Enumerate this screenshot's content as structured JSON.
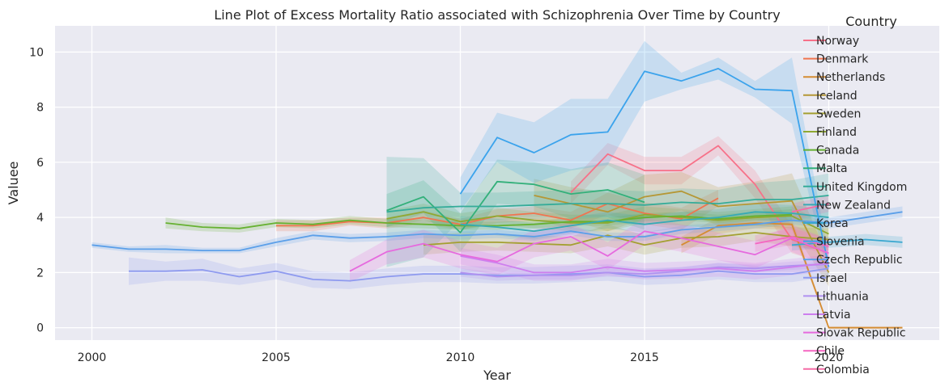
{
  "chart_data": {
    "type": "line",
    "title": "Line Plot of Excess Mortality Ratio associated with Schizophrenia Over Time by Country",
    "xlabel": "Year",
    "ylabel": "Valuee",
    "xlim": [
      1999,
      2023
    ],
    "ylim": [
      -0.45,
      10.95
    ],
    "xticks": [
      2000,
      2005,
      2010,
      2015,
      2020
    ],
    "yticks": [
      0,
      2,
      4,
      6,
      8,
      10
    ],
    "grid": true,
    "legend": {
      "title": "Country",
      "placement": "top-right"
    },
    "series": [
      {
        "name": "Norway",
        "color": "#f77189",
        "x": [
          2013,
          2014,
          2015,
          2016,
          2017,
          2018,
          2019,
          2020
        ],
        "y": [
          4.9,
          6.3,
          5.7,
          5.7,
          6.6,
          5.2,
          3.2,
          2.7
        ],
        "band": [
          0.4,
          0.4,
          0.5,
          0.5,
          0.35,
          0.5,
          0.5,
          0.4
        ]
      },
      {
        "name": "Denmark",
        "color": "#f0744f",
        "x": [
          2005,
          2006,
          2007,
          2008,
          2009,
          2010,
          2011,
          2012,
          2013,
          2014,
          2015,
          2016,
          2017
        ],
        "y": [
          3.7,
          3.7,
          3.85,
          3.8,
          4.0,
          3.75,
          4.05,
          4.15,
          3.9,
          4.5,
          4.15,
          3.95,
          4.7
        ],
        "band": [
          0.2,
          0.2,
          0.15,
          0.2,
          0.25,
          0.2,
          0.25,
          0.25,
          0.3,
          0.4,
          0.4,
          0.4,
          0.3
        ]
      },
      {
        "name": "Netherlands",
        "color": "#d58c32",
        "x": [
          2016,
          2017,
          2018,
          2019,
          2020,
          2021,
          2022
        ],
        "y": [
          3.0,
          3.7,
          3.8,
          3.75,
          0.0,
          0.0,
          0.0
        ],
        "band": [
          0.3,
          0.3,
          0.2,
          0.2,
          0.05,
          0.05,
          0.05
        ]
      },
      {
        "name": "Iceland",
        "color": "#b59735",
        "x": [
          2012,
          2013,
          2014,
          2015,
          2016,
          2017,
          2018,
          2019,
          2020
        ],
        "y": [
          4.8,
          4.5,
          4.2,
          4.75,
          4.95,
          4.4,
          4.5,
          4.6,
          2.0
        ],
        "band": [
          0.6,
          0.6,
          0.7,
          0.8,
          0.7,
          0.7,
          0.8,
          1.0,
          0.5
        ]
      },
      {
        "name": "Sweden",
        "color": "#a4a031",
        "x": [
          2009,
          2010,
          2011,
          2012,
          2013,
          2014,
          2015,
          2016,
          2017,
          2018,
          2019,
          2020
        ],
        "y": [
          3.0,
          3.1,
          3.1,
          3.05,
          3.0,
          3.35,
          3.0,
          3.25,
          3.3,
          3.45,
          3.3,
          3.2
        ],
        "band": [
          0.35,
          0.35,
          0.3,
          0.3,
          0.3,
          0.4,
          0.35,
          0.35,
          0.35,
          0.3,
          0.35,
          0.4
        ]
      },
      {
        "name": "Finland",
        "color": "#8fa931",
        "x": [
          2008,
          2009,
          2010,
          2011,
          2012,
          2013,
          2014,
          2015,
          2016,
          2017,
          2018,
          2019,
          2020
        ],
        "y": [
          3.95,
          4.2,
          3.85,
          4.05,
          3.9,
          3.8,
          3.8,
          4.1,
          4.0,
          3.9,
          4.0,
          4.05,
          3.4
        ],
        "band": [
          0.3,
          0.3,
          0.3,
          0.3,
          0.3,
          0.3,
          0.3,
          0.3,
          0.3,
          0.3,
          0.3,
          0.35,
          0.3
        ]
      },
      {
        "name": "Canada",
        "color": "#66b131",
        "x": [
          2002,
          2003,
          2004,
          2005,
          2006,
          2007,
          2008,
          2009,
          2010,
          2011,
          2012,
          2013,
          2014,
          2015,
          2016,
          2017,
          2018,
          2019
        ],
        "y": [
          3.8,
          3.65,
          3.6,
          3.8,
          3.75,
          3.9,
          3.8,
          3.75,
          3.7,
          3.7,
          3.75,
          3.85,
          3.85,
          4.0,
          4.05,
          3.95,
          4.05,
          4.1
        ],
        "band": [
          0.2,
          0.15,
          0.15,
          0.15,
          0.15,
          0.15,
          0.15,
          0.15,
          0.15,
          0.15,
          0.15,
          0.15,
          0.15,
          0.15,
          0.15,
          0.15,
          0.15,
          0.2
        ]
      },
      {
        "name": "Malta",
        "color": "#33b07a",
        "x": [
          2008,
          2009,
          2010,
          2011,
          2012,
          2013,
          2014,
          2015
        ],
        "y": [
          4.25,
          4.75,
          3.45,
          5.3,
          5.2,
          4.85,
          5.0,
          4.55
        ],
        "band": [
          0.6,
          0.6,
          0.7,
          0.8,
          0.8,
          0.9,
          1.0,
          1.0
        ]
      },
      {
        "name": "United Kingdom",
        "color": "#35ac99",
        "x": [
          2008,
          2009,
          2010,
          2011,
          2012,
          2013,
          2014,
          2015,
          2016,
          2017,
          2018,
          2019,
          2020
        ],
        "y": [
          4.2,
          4.35,
          4.4,
          4.4,
          4.45,
          4.5,
          4.5,
          4.45,
          4.55,
          4.5,
          4.65,
          4.65,
          4.8
        ],
        "band": [
          2.0,
          1.8,
          0.5,
          0.5,
          0.5,
          0.5,
          0.5,
          0.5,
          0.5,
          0.5,
          0.6,
          0.7,
          0.8
        ]
      },
      {
        "name": "New Zealand",
        "color": "#37aab5",
        "x": [
          2010,
          2011,
          2012,
          2013,
          2014,
          2015,
          2016,
          2017,
          2018,
          2019,
          2020
        ],
        "y": [
          3.75,
          3.65,
          3.5,
          3.7,
          3.9,
          3.75,
          3.9,
          4.0,
          4.2,
          4.15,
          4.0
        ],
        "band": [
          0.3,
          0.3,
          0.3,
          0.3,
          0.3,
          0.3,
          0.3,
          0.3,
          0.3,
          0.3,
          0.3
        ]
      },
      {
        "name": "Korea",
        "color": "#39a7cf",
        "x": [
          2019,
          2020,
          2021,
          2022
        ],
        "y": [
          3.0,
          3.1,
          3.2,
          3.1
        ],
        "band": [
          0.2,
          0.2,
          0.2,
          0.2
        ]
      },
      {
        "name": "Slovenia",
        "color": "#3ba3ec",
        "x": [
          2010,
          2011,
          2012,
          2013,
          2014,
          2015,
          2016,
          2017,
          2018,
          2019,
          2020
        ],
        "y": [
          4.85,
          6.9,
          6.35,
          7.0,
          7.1,
          9.3,
          8.95,
          9.4,
          8.65,
          8.6,
          2.2
        ],
        "band": [
          0.6,
          0.9,
          1.1,
          1.3,
          1.2,
          1.1,
          0.3,
          0.4,
          0.3,
          1.2,
          0.4
        ]
      },
      {
        "name": "Czech Republic",
        "color": "#5b9fe9",
        "x": [
          2000,
          2001,
          2002,
          2003,
          2004,
          2005,
          2006,
          2007,
          2008,
          2009,
          2010,
          2011,
          2012,
          2013,
          2014,
          2015,
          2016,
          2017,
          2018,
          2019,
          2020,
          2021,
          2022
        ],
        "y": [
          3.0,
          2.85,
          2.85,
          2.8,
          2.8,
          3.1,
          3.35,
          3.25,
          3.3,
          3.4,
          3.35,
          3.4,
          3.3,
          3.5,
          3.3,
          3.3,
          3.55,
          3.65,
          3.75,
          3.9,
          3.8,
          4.0,
          4.2
        ],
        "band": [
          0.1,
          0.1,
          0.15,
          0.1,
          0.1,
          0.15,
          0.15,
          0.15,
          0.15,
          0.15,
          0.15,
          0.15,
          0.15,
          0.15,
          0.15,
          0.15,
          0.15,
          0.15,
          0.15,
          0.15,
          0.2,
          0.2,
          0.2
        ]
      },
      {
        "name": "Israel",
        "color": "#8e9aef",
        "x": [
          2001,
          2002,
          2003,
          2004,
          2005,
          2006,
          2007,
          2008,
          2009,
          2010,
          2011,
          2012,
          2013,
          2014,
          2015,
          2016,
          2017,
          2018,
          2019,
          2020
        ],
        "y": [
          2.05,
          2.05,
          2.1,
          1.85,
          2.05,
          1.75,
          1.7,
          1.85,
          1.95,
          1.95,
          1.9,
          1.9,
          1.95,
          2.0,
          1.85,
          1.9,
          2.05,
          1.95,
          1.95,
          2.15
        ],
        "band": [
          0.5,
          0.35,
          0.4,
          0.3,
          0.3,
          0.3,
          0.3,
          0.3,
          0.3,
          0.3,
          0.3,
          0.3,
          0.3,
          0.3,
          0.3,
          0.3,
          0.3,
          0.3,
          0.3,
          0.3
        ]
      },
      {
        "name": "Lithuania",
        "color": "#b091f0",
        "x": [
          2010,
          2011,
          2012,
          2013,
          2014,
          2015,
          2016,
          2017,
          2018,
          2019,
          2020
        ],
        "y": [
          2.0,
          1.85,
          1.9,
          1.9,
          2.0,
          1.95,
          2.05,
          2.2,
          2.15,
          2.25,
          2.3
        ],
        "band": [
          0.15,
          0.15,
          0.15,
          0.15,
          0.15,
          0.15,
          0.15,
          0.15,
          0.15,
          0.15,
          0.15
        ]
      },
      {
        "name": "Latvia",
        "color": "#cd7fee",
        "x": [
          2010,
          2011,
          2012,
          2013,
          2014,
          2015,
          2016,
          2017,
          2018,
          2019,
          2020
        ],
        "y": [
          2.6,
          2.35,
          2.0,
          2.0,
          2.2,
          2.05,
          2.1,
          2.15,
          2.05,
          2.2,
          2.35
        ],
        "band": [
          0.3,
          0.3,
          0.3,
          0.3,
          0.3,
          0.3,
          0.3,
          0.3,
          0.3,
          0.3,
          0.3
        ]
      },
      {
        "name": "Slovak Republic",
        "color": "#e66ade",
        "x": [
          2007,
          2008,
          2009,
          2010,
          2011,
          2012,
          2013,
          2014,
          2015,
          2016,
          2017,
          2018,
          2019,
          2020
        ],
        "y": [
          2.05,
          2.75,
          3.05,
          2.65,
          2.4,
          3.05,
          3.3,
          2.6,
          3.5,
          3.25,
          2.95,
          2.65,
          3.25,
          2.7
        ],
        "band": [
          0.4,
          0.45,
          0.5,
          0.5,
          0.5,
          0.5,
          0.5,
          0.5,
          0.5,
          0.5,
          0.5,
          0.5,
          0.5,
          0.5
        ]
      },
      {
        "name": "Chile",
        "color": "#f565c1",
        "x": [
          2018,
          2019,
          2020
        ],
        "y": [
          3.05,
          3.3,
          2.95
        ],
        "band": [
          0.3,
          0.3,
          0.3
        ]
      },
      {
        "name": "Colombia",
        "color": "#f56ba6",
        "x": [
          2019,
          2020
        ],
        "y": [
          4.2,
          4.5
        ],
        "band": [
          0.3,
          0.3
        ]
      }
    ]
  }
}
